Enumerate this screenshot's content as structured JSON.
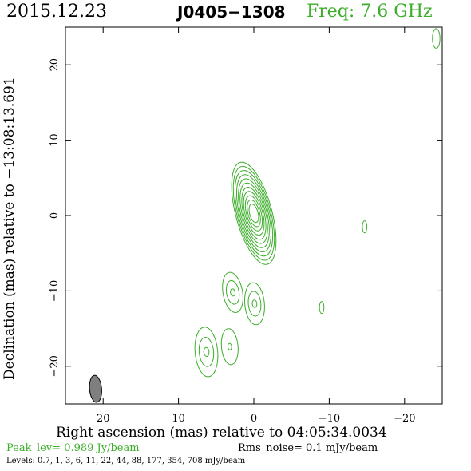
{
  "header": {
    "date": "2015.12.23",
    "source": "J0405−1308",
    "freq": "Freq: 7.6 GHz"
  },
  "axes": {
    "xlabel": "Right ascension (mas) relative to 04:05:34.0034",
    "ylabel": "Declination (mas) relative to −13:08:13.691"
  },
  "footer": {
    "peak": "Peak_lev=  0.989 Jy/beam",
    "rms": "Rms_noise=  0.1 mJy/beam",
    "levels": "Levels: 0.7,   1,   3,   6,   11,   22,   44,   88, 177, 354, 708 mJy/beam"
  },
  "colors": {
    "contour": "#3cae2a",
    "beam_fill": "#7f7f7f",
    "text_green": "#3cae2a"
  },
  "chart_data": {
    "type": "contour",
    "xlim": [
      25,
      -25
    ],
    "ylim": [
      -25,
      25
    ],
    "x_ticks": [
      20,
      10,
      0,
      -10,
      -20
    ],
    "x_tick_labels": [
      "20",
      "10",
      "0",
      "−10",
      "−20"
    ],
    "y_ticks": [
      20,
      10,
      0,
      -10,
      -20
    ],
    "y_tick_labels": [
      "20",
      "10",
      "0",
      "−10",
      "−20"
    ],
    "components": [
      {
        "ra": 0.0,
        "dec": 0.3,
        "semi_major": 7.0,
        "semi_minor": 2.4,
        "pa": -15,
        "n_contours": 11
      },
      {
        "ra": 2.8,
        "dec": -10.2,
        "semi_major": 2.7,
        "semi_minor": 1.3,
        "pa": -10,
        "n_contours": 3
      },
      {
        "ra": -0.1,
        "dec": -11.7,
        "semi_major": 2.8,
        "semi_minor": 1.3,
        "pa": -5,
        "n_contours": 3
      },
      {
        "ra": 6.3,
        "dec": -18.1,
        "semi_major": 3.3,
        "semi_minor": 1.5,
        "pa": -5,
        "n_contours": 3
      },
      {
        "ra": 3.2,
        "dec": -17.4,
        "semi_major": 2.4,
        "semi_minor": 1.1,
        "pa": -5,
        "n_contours": 2
      },
      {
        "ra": -14.7,
        "dec": -1.5,
        "semi_major": 0.8,
        "semi_minor": 0.3,
        "pa": 0,
        "n_contours": 1
      },
      {
        "ra": -9.0,
        "dec": -12.2,
        "semi_major": 0.8,
        "semi_minor": 0.3,
        "pa": 0,
        "n_contours": 1
      },
      {
        "ra": -24.2,
        "dec": 23.5,
        "semi_major": 1.3,
        "semi_minor": 0.5,
        "pa": 0,
        "n_contours": 1
      }
    ],
    "beam": {
      "ra": 21.0,
      "dec": -23.0,
      "semi_major": 1.8,
      "semi_minor": 0.8,
      "pa": -5
    }
  }
}
